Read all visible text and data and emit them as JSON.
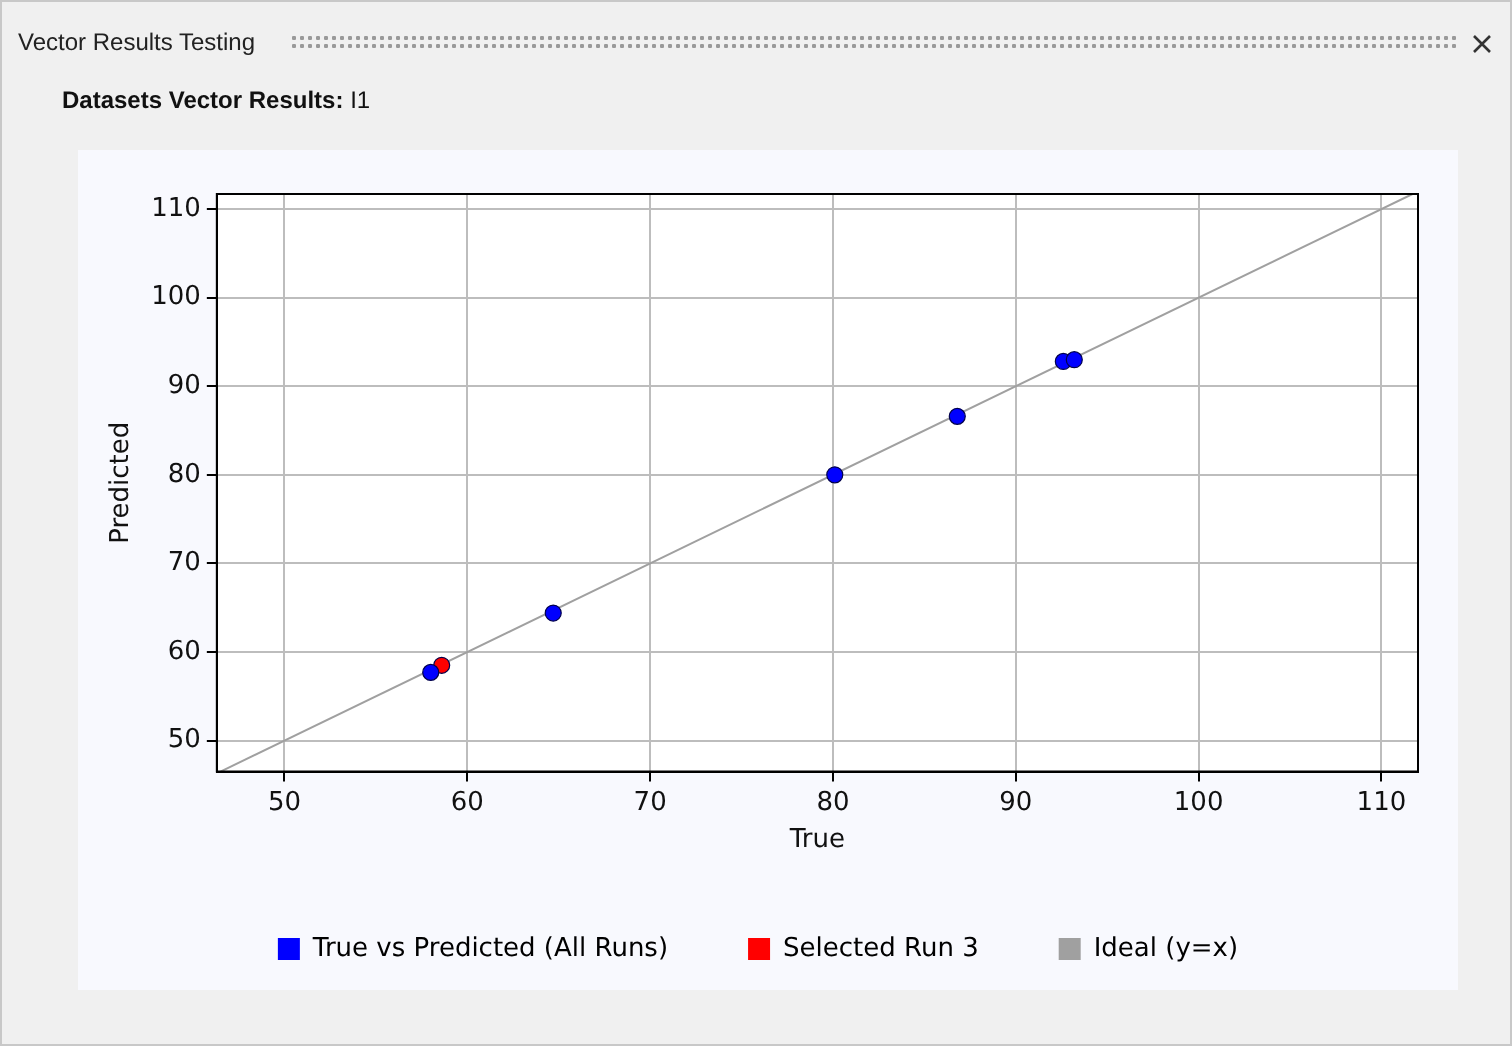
{
  "chart_data": {
    "type": "scatter",
    "title": "Vector Results Testing",
    "subtitle": "Datasets Vector Results: I1",
    "xlabel": "True",
    "ylabel": "Predicted",
    "xlim": [
      46.3,
      112
    ],
    "ylim": [
      46.5,
      111.7
    ],
    "xticks": [
      50,
      60,
      70,
      80,
      90,
      100,
      110
    ],
    "yticks": [
      50,
      60,
      70,
      80,
      90,
      100,
      110
    ],
    "grid": true,
    "legend": "bottom",
    "marker": "circle",
    "series": [
      {
        "name": "True vs Predicted (All Runs)",
        "color": "#0000ff",
        "x": [
          58.0,
          64.7,
          80.1,
          86.8,
          92.6,
          93.2
        ],
        "values": [
          57.7,
          64.4,
          80.0,
          86.6,
          92.8,
          93.0
        ]
      },
      {
        "name": "Selected Run 3",
        "color": "#ff0000",
        "x": [
          58.6
        ],
        "values": [
          58.5
        ]
      },
      {
        "name": "Ideal (y=x)",
        "type": "line",
        "color": "#a0a0a0",
        "marker": "none",
        "x": [
          46.5,
          111.7
        ],
        "values": [
          46.5,
          111.7
        ]
      }
    ]
  }
}
